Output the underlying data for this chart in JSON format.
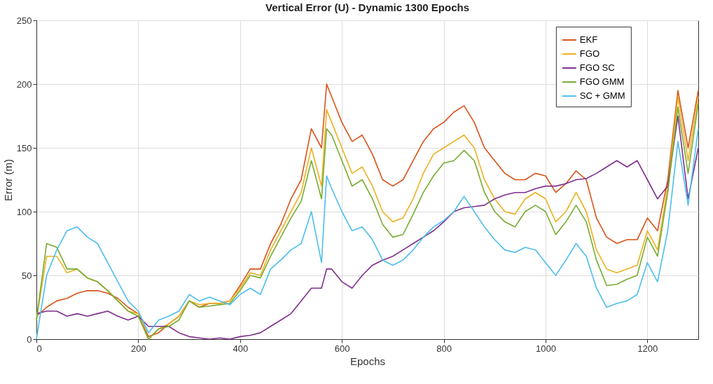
{
  "chart_data": {
    "type": "line",
    "title": "Vertical Error (U) - Dynamic 1300 Epochs",
    "xlabel": "Epochs",
    "ylabel": "Error (m)",
    "x": [
      0,
      20,
      40,
      60,
      80,
      100,
      120,
      140,
      160,
      180,
      200,
      220,
      240,
      260,
      280,
      300,
      320,
      340,
      360,
      380,
      400,
      420,
      440,
      460,
      480,
      500,
      520,
      540,
      560,
      570,
      580,
      600,
      620,
      640,
      660,
      680,
      700,
      720,
      740,
      760,
      780,
      800,
      820,
      840,
      860,
      880,
      900,
      920,
      940,
      960,
      980,
      1000,
      1020,
      1040,
      1060,
      1080,
      1100,
      1120,
      1140,
      1160,
      1180,
      1200,
      1220,
      1240,
      1260,
      1280,
      1300
    ],
    "series": [
      {
        "name": "EKF",
        "color": "#d95319",
        "values": [
          18,
          25,
          30,
          32,
          36,
          38,
          38,
          36,
          32,
          25,
          20,
          2,
          5,
          12,
          18,
          30,
          25,
          28,
          28,
          30,
          42,
          55,
          55,
          75,
          90,
          110,
          125,
          165,
          150,
          200,
          190,
          170,
          155,
          160,
          145,
          125,
          120,
          125,
          140,
          155,
          165,
          170,
          178,
          183,
          170,
          150,
          140,
          130,
          125,
          125,
          130,
          128,
          115,
          122,
          132,
          125,
          95,
          80,
          75,
          78,
          78,
          95,
          85,
          125,
          195,
          150,
          195
        ]
      },
      {
        "name": "FGO",
        "color": "#edb120",
        "values": [
          15,
          65,
          65,
          52,
          55,
          48,
          45,
          38,
          30,
          22,
          20,
          0,
          8,
          12,
          18,
          30,
          27,
          28,
          28,
          30,
          40,
          52,
          50,
          70,
          85,
          100,
          115,
          150,
          120,
          180,
          170,
          150,
          130,
          135,
          120,
          100,
          92,
          95,
          110,
          130,
          145,
          150,
          155,
          160,
          150,
          125,
          110,
          100,
          98,
          110,
          115,
          110,
          92,
          100,
          115,
          100,
          70,
          55,
          52,
          55,
          58,
          85,
          70,
          120,
          190,
          140,
          190
        ]
      },
      {
        "name": "FGO SC",
        "color": "#7e2f8e",
        "values": [
          20,
          22,
          22,
          18,
          20,
          18,
          20,
          22,
          18,
          15,
          18,
          10,
          10,
          10,
          5,
          2,
          1,
          0,
          1,
          0,
          2,
          3,
          5,
          10,
          15,
          20,
          30,
          40,
          40,
          55,
          55,
          45,
          40,
          50,
          58,
          62,
          65,
          70,
          75,
          80,
          85,
          92,
          100,
          103,
          104,
          105,
          110,
          113,
          115,
          115,
          118,
          120,
          120,
          122,
          125,
          126,
          130,
          135,
          140,
          135,
          140,
          125,
          110,
          120,
          175,
          110,
          150
        ]
      },
      {
        "name": "FGO GMM",
        "color": "#77ac30",
        "values": [
          15,
          75,
          72,
          55,
          55,
          48,
          45,
          38,
          30,
          22,
          18,
          0,
          8,
          10,
          15,
          30,
          25,
          26,
          27,
          28,
          38,
          50,
          48,
          65,
          80,
          95,
          108,
          140,
          110,
          165,
          160,
          140,
          120,
          125,
          110,
          90,
          80,
          82,
          98,
          115,
          128,
          138,
          140,
          148,
          140,
          115,
          100,
          92,
          88,
          100,
          105,
          100,
          82,
          92,
          105,
          92,
          62,
          42,
          43,
          47,
          50,
          80,
          65,
          115,
          182,
          130,
          185
        ]
      },
      {
        "name": "SC + GMM",
        "color": "#4dbeee",
        "values": [
          0,
          50,
          70,
          85,
          88,
          80,
          75,
          60,
          45,
          30,
          22,
          5,
          15,
          18,
          22,
          35,
          30,
          33,
          30,
          27,
          35,
          40,
          35,
          55,
          62,
          70,
          75,
          100,
          60,
          128,
          118,
          100,
          85,
          88,
          78,
          62,
          58,
          62,
          70,
          80,
          88,
          93,
          100,
          112,
          100,
          88,
          78,
          70,
          68,
          72,
          70,
          60,
          50,
          62,
          75,
          65,
          40,
          25,
          28,
          30,
          35,
          60,
          45,
          85,
          155,
          105,
          165
        ]
      }
    ],
    "xlim": [
      0,
      1300
    ],
    "xticks": [
      0,
      200,
      400,
      600,
      800,
      1000,
      1200
    ],
    "ylim": [
      0,
      250
    ],
    "yticks": [
      0,
      50,
      100,
      150,
      200,
      250
    ],
    "grid": true,
    "legend": "top right",
    "line_style": "solid",
    "marker": "none"
  }
}
